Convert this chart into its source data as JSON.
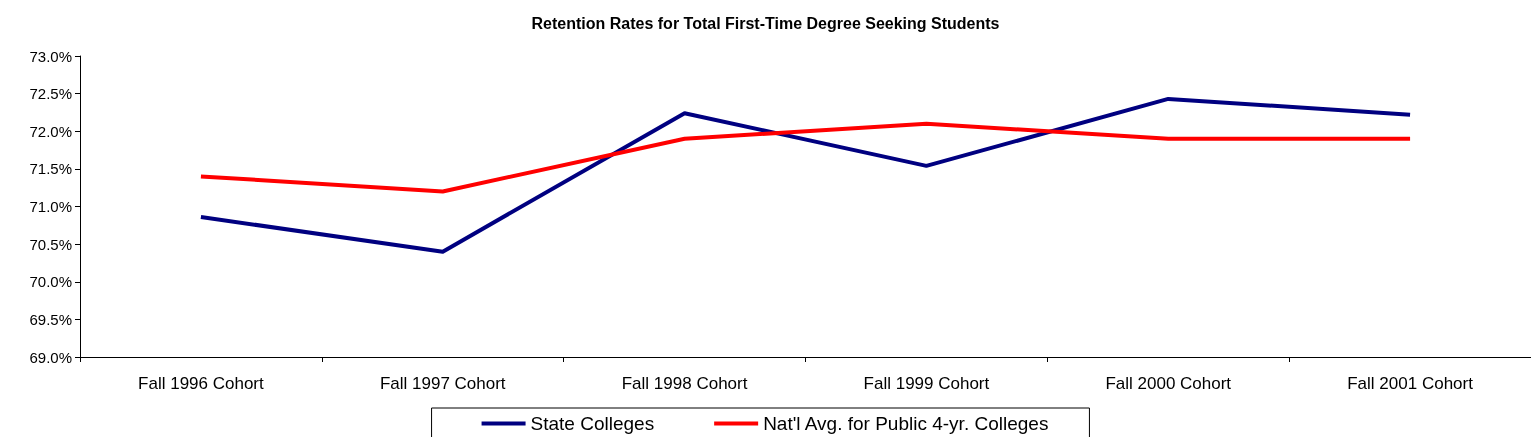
{
  "chart_data": {
    "type": "line",
    "title": "Retention Rates for Total First-Time Degree Seeking Students",
    "categories": [
      "Fall 1996 Cohort",
      "Fall 1997 Cohort",
      "Fall 1998 Cohort",
      "Fall 1999 Cohort",
      "Fall 2000 Cohort",
      "Fall 2001 Cohort"
    ],
    "series": [
      {
        "name": "State Colleges",
        "color": "#000080",
        "values": [
          70.86,
          70.4,
          72.24,
          71.54,
          72.43,
          72.22
        ]
      },
      {
        "name": "Nat'l Avg. for Public 4-yr. Colleges",
        "color": "#ff0000",
        "values": [
          71.4,
          71.2,
          71.9,
          72.1,
          71.9,
          71.9
        ]
      }
    ],
    "ylim": [
      69,
      73
    ],
    "yticks": [
      {
        "value": 69,
        "label": "69.0%"
      },
      {
        "value": 69.5,
        "label": "69.5%"
      },
      {
        "value": 70,
        "label": "70.0%"
      },
      {
        "value": 70.5,
        "label": "70.5%"
      },
      {
        "value": 71,
        "label": "71.0%"
      },
      {
        "value": 71.5,
        "label": "71.5%"
      },
      {
        "value": 72,
        "label": "72.0%"
      },
      {
        "value": 72.5,
        "label": "72.5%"
      },
      {
        "value": 73,
        "label": "73.0%"
      }
    ],
    "grid": false,
    "legend": "bottom",
    "marker": "none",
    "line_style": "solid"
  }
}
